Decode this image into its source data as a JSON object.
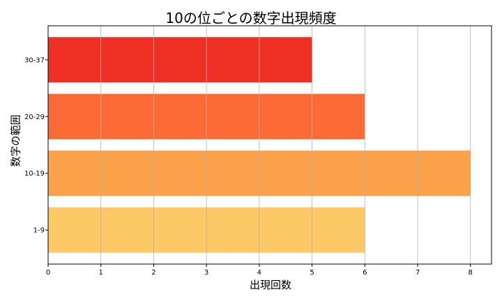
{
  "chart_data": {
    "type": "bar",
    "orientation": "horizontal",
    "title": "10の位ごとの数字出現頻度",
    "xlabel": "出現回数",
    "ylabel": "数字の範囲",
    "categories": [
      "1-9",
      "10-19",
      "20-29",
      "30-37"
    ],
    "values": [
      6,
      8,
      6,
      5
    ],
    "colors": [
      "#FDC966",
      "#FBA24A",
      "#FC6B35",
      "#EE2F24"
    ],
    "xlim": [
      0,
      8.4
    ],
    "xticks": [
      0,
      1,
      2,
      3,
      4,
      5,
      6,
      7,
      8
    ],
    "grid": "x"
  }
}
